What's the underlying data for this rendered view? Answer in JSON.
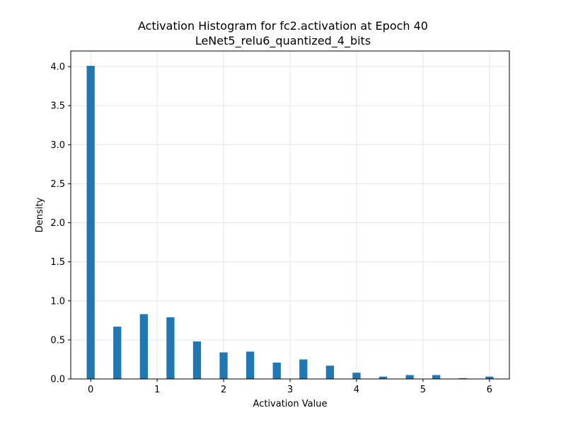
{
  "chart_data": {
    "type": "bar",
    "title": "Activation Histogram for fc2.activation at Epoch 40",
    "subtitle": "LeNet5_relu6_quantized_4_bits",
    "xlabel": "Activation Value",
    "ylabel": "Density",
    "xlim": [
      -0.3,
      6.3
    ],
    "ylim": [
      0,
      4.2
    ],
    "xticks": [
      0,
      1,
      2,
      3,
      4,
      5,
      6
    ],
    "yticks": [
      0.0,
      0.5,
      1.0,
      1.5,
      2.0,
      2.5,
      3.0,
      3.5,
      4.0
    ],
    "grid": true,
    "bar_color": "#1f77b4",
    "bin_width": 0.12,
    "x": [
      0.0,
      0.4,
      0.8,
      1.2,
      1.6,
      2.0,
      2.4,
      2.8,
      3.2,
      3.6,
      4.0,
      4.4,
      4.8,
      5.2,
      5.6,
      6.0
    ],
    "values": [
      4.01,
      0.67,
      0.83,
      0.79,
      0.48,
      0.34,
      0.35,
      0.21,
      0.25,
      0.17,
      0.08,
      0.03,
      0.05,
      0.05,
      0.01,
      0.03
    ]
  }
}
